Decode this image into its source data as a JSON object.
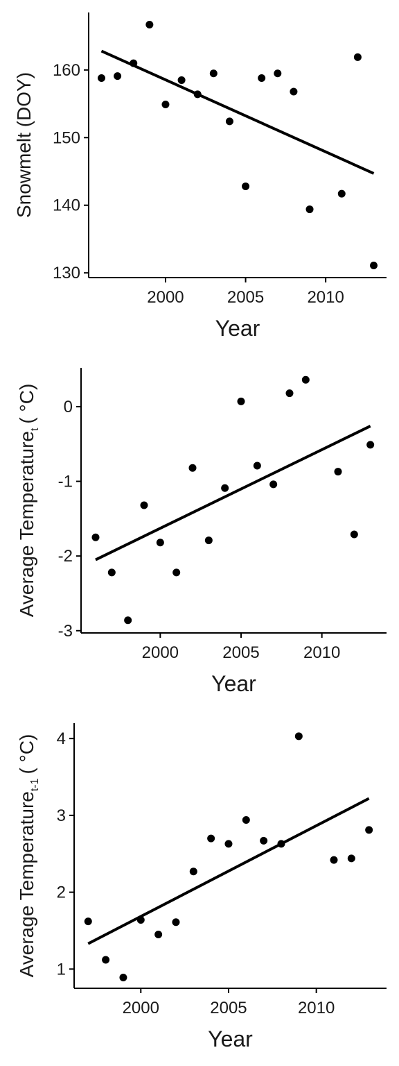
{
  "chart_data": [
    {
      "type": "scatter",
      "title": "",
      "xlabel": "Year",
      "ylabel": "Snowmelt (DOY)",
      "xlim": [
        1995.2,
        2013.8
      ],
      "ylim": [
        129.3,
        168.5
      ],
      "x_ticks": [
        2000,
        2005,
        2010
      ],
      "y_ticks": [
        130,
        140,
        150,
        160
      ],
      "grid": false,
      "series": [
        {
          "x": [
            1996,
            1997,
            1998,
            1999,
            2000,
            2001,
            2002,
            2003,
            2004,
            2005,
            2006,
            2007,
            2008,
            2009,
            2011,
            2012,
            2013
          ],
          "y": [
            158.8,
            159.1,
            161.0,
            166.7,
            154.9,
            158.5,
            156.4,
            159.5,
            152.4,
            142.8,
            158.8,
            159.5,
            156.8,
            139.4,
            141.7,
            161.9,
            131.1
          ]
        }
      ],
      "trendline": {
        "x": [
          1996,
          2013
        ],
        "y": [
          162.8,
          144.7
        ]
      }
    },
    {
      "type": "scatter",
      "title": "",
      "xlabel": "Year",
      "ylabel_main": "Average Temperature",
      "ylabel_sub": "t",
      "ylabel_unit": "( °C)",
      "xlim": [
        1995.1,
        2014.0
      ],
      "ylim": [
        -3.03,
        0.52
      ],
      "x_ticks": [
        2000,
        2005,
        2010
      ],
      "y_ticks": [
        -3,
        -2,
        -1,
        0
      ],
      "y_tick_labels": [
        "-3",
        "-2",
        "-1",
        "0"
      ],
      "grid": false,
      "series": [
        {
          "x": [
            1996,
            1997,
            1998,
            1999,
            2000,
            2001,
            2002,
            2003,
            2004,
            2005,
            2006,
            2007,
            2008,
            2009,
            2011,
            2012,
            2013
          ],
          "y": [
            -1.75,
            -2.22,
            -2.86,
            -1.32,
            -1.82,
            -2.22,
            -0.82,
            -1.79,
            -1.09,
            0.07,
            -0.79,
            -1.04,
            0.18,
            0.36,
            -0.87,
            -1.71,
            -0.51
          ]
        }
      ],
      "trendline": {
        "x": [
          1996,
          2013
        ],
        "y": [
          -2.05,
          -0.26
        ]
      }
    },
    {
      "type": "scatter",
      "title": "",
      "xlabel": "Year",
      "ylabel_main": "Average Temperature",
      "ylabel_sub": "t-1",
      "ylabel_unit": "( °C)",
      "xlim": [
        1996.2,
        2014.0
      ],
      "ylim": [
        0.75,
        4.2
      ],
      "x_ticks": [
        2000,
        2005,
        2010
      ],
      "y_ticks": [
        1,
        2,
        3,
        4
      ],
      "grid": false,
      "series": [
        {
          "x": [
            1997,
            1998,
            1999,
            2000,
            2001,
            2002,
            2003,
            2004,
            2005,
            2006,
            2007,
            2008,
            2009,
            2011,
            2012,
            2013
          ],
          "y": [
            1.62,
            1.12,
            0.89,
            1.64,
            1.45,
            1.61,
            2.27,
            2.7,
            2.63,
            2.94,
            2.67,
            2.63,
            4.03,
            2.42,
            2.44,
            2.81
          ]
        }
      ],
      "trendline": {
        "x": [
          1997,
          2013
        ],
        "y": [
          1.33,
          3.22
        ]
      }
    }
  ]
}
